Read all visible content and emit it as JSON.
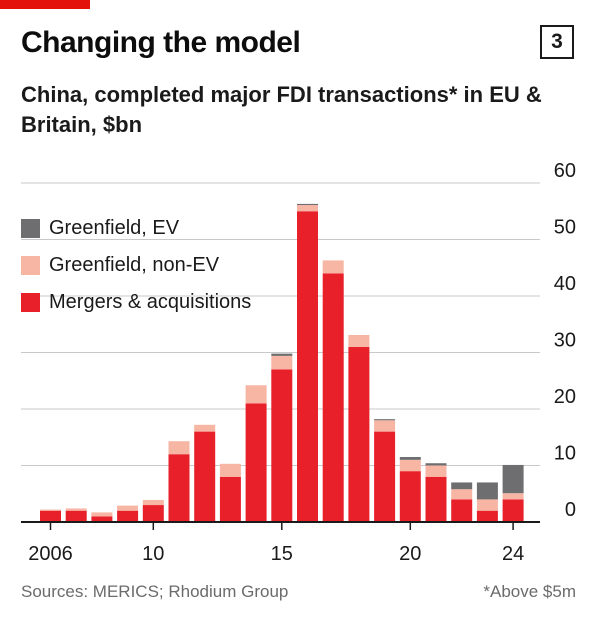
{
  "title": "Changing the model",
  "chart_number": "3",
  "subtitle": "China, completed major FDI transactions* in EU & Britain, $bn",
  "source": "Sources: MERICS; Rhodium Group",
  "footnote": "*Above $5m",
  "colors": {
    "brand_red": "#e3120b",
    "mergers": "#e8202a",
    "greenfield_non_ev": "#f7b5a3",
    "greenfield_ev": "#6e6e70",
    "grid": "#c9c9c9",
    "axis": "#1a1a1a"
  },
  "chart_data": {
    "type": "bar",
    "stacked": true,
    "title": "Changing the model",
    "subtitle": "China, completed major FDI transactions* in EU & Britain, $bn",
    "x": [
      2006,
      2007,
      2008,
      2009,
      2010,
      2011,
      2012,
      2013,
      2014,
      2015,
      2016,
      2017,
      2018,
      2019,
      2020,
      2021,
      2022,
      2023,
      2024
    ],
    "x_tick_labels": [
      {
        "x": 2006,
        "label": "2006"
      },
      {
        "x": 2010,
        "label": "10"
      },
      {
        "x": 2015,
        "label": "15"
      },
      {
        "x": 2020,
        "label": "20"
      },
      {
        "x": 2024,
        "label": "24"
      }
    ],
    "series": [
      {
        "name": "Mergers & acquisitions",
        "color": "#e8202a",
        "values": [
          2,
          2,
          1,
          2,
          3,
          12,
          16,
          8,
          21,
          27,
          55,
          44,
          31,
          16,
          9,
          8,
          4,
          2,
          4
        ]
      },
      {
        "name": "Greenfield, non-EV",
        "color": "#f7b5a3",
        "values": [
          0.2,
          0.4,
          0.7,
          0.9,
          0.9,
          2.3,
          1.2,
          2.3,
          3.2,
          2.4,
          1.1,
          2.3,
          2.1,
          2.0,
          2.0,
          2.0,
          1.8,
          2.0,
          1.1
        ]
      },
      {
        "name": "Greenfield, EV",
        "color": "#6e6e70",
        "values": [
          0,
          0,
          0,
          0,
          0,
          0,
          0,
          0,
          0,
          0.4,
          0.2,
          0,
          0,
          0.2,
          0.5,
          0.4,
          1.2,
          3.0,
          5.0
        ]
      }
    ],
    "yticks": [
      0,
      10,
      20,
      30,
      40,
      50,
      60
    ],
    "ylim": [
      0,
      60
    ],
    "grid": true,
    "legend_position": "top-left"
  }
}
